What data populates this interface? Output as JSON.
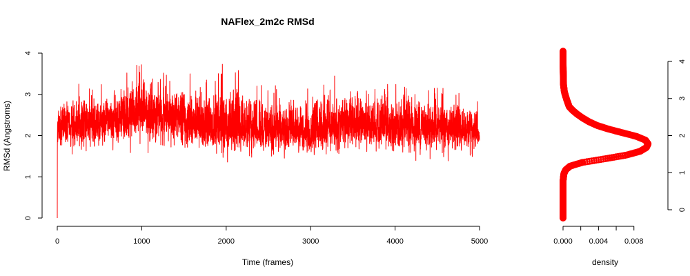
{
  "chart_data": [
    {
      "type": "line",
      "title": "NAFlex_2m2c RMSd",
      "xlabel": "Time (frames)",
      "ylabel": "RMSd (Angstroms)",
      "xlim": [
        0,
        5000
      ],
      "ylim": [
        0,
        4
      ],
      "xticks": [
        0,
        1000,
        2000,
        3000,
        4000,
        5000
      ],
      "yticks": [
        0,
        1,
        2,
        3,
        4
      ],
      "grid": false,
      "color": "#ff0000",
      "n_frames": 5000,
      "summary": {
        "mean": 2.15,
        "min": 0.0,
        "max": 4.15,
        "first": 0.0
      },
      "band_by_segment": {
        "x": [
          0,
          500,
          1000,
          1500,
          2000,
          2500,
          3000,
          3500,
          4000,
          4500,
          5000
        ],
        "mean": [
          2.2,
          2.25,
          2.5,
          2.3,
          2.1,
          2.15,
          2.05,
          2.3,
          2.15,
          2.2,
          2.1
        ],
        "low": [
          1.5,
          1.5,
          1.5,
          1.45,
          1.3,
          1.4,
          1.35,
          1.4,
          1.4,
          1.3,
          1.4
        ],
        "high": [
          3.3,
          3.4,
          4.1,
          3.6,
          4.1,
          3.3,
          3.4,
          3.5,
          3.6,
          3.4,
          3.0
        ]
      }
    },
    {
      "type": "line",
      "orientation": "vertical",
      "marker": "circle",
      "xlabel": "density",
      "xlim": [
        0,
        0.0095
      ],
      "ylim": [
        0,
        4.2
      ],
      "xticks": [
        0,
        0.002,
        0.004,
        0.006,
        0.008
      ],
      "xtick_labels": [
        "0.000",
        "",
        "0.004",
        "",
        "0.008"
      ],
      "yticks": [
        0,
        1,
        2,
        3,
        4
      ],
      "color": "#ff0000",
      "points": [
        {
          "y": 0.0,
          "density": 0.0
        },
        {
          "y": 1.0,
          "density": 0.0
        },
        {
          "y": 1.2,
          "density": 0.0001
        },
        {
          "y": 1.3,
          "density": 0.0003
        },
        {
          "y": 1.4,
          "density": 0.0008
        },
        {
          "y": 1.5,
          "density": 0.0022
        },
        {
          "y": 1.6,
          "density": 0.0048
        },
        {
          "y": 1.7,
          "density": 0.0072
        },
        {
          "y": 1.8,
          "density": 0.0087
        },
        {
          "y": 1.9,
          "density": 0.0094
        },
        {
          "y": 2.0,
          "density": 0.0096
        },
        {
          "y": 2.1,
          "density": 0.0093
        },
        {
          "y": 2.2,
          "density": 0.0083
        },
        {
          "y": 2.3,
          "density": 0.0067
        },
        {
          "y": 2.4,
          "density": 0.0051
        },
        {
          "y": 2.5,
          "density": 0.0038
        },
        {
          "y": 2.6,
          "density": 0.0029
        },
        {
          "y": 2.7,
          "density": 0.0022
        },
        {
          "y": 2.8,
          "density": 0.0016
        },
        {
          "y": 2.9,
          "density": 0.0011
        },
        {
          "y": 3.0,
          "density": 0.0007
        },
        {
          "y": 3.2,
          "density": 0.0004
        },
        {
          "y": 3.4,
          "density": 0.00015
        },
        {
          "y": 3.6,
          "density": 5e-05
        },
        {
          "y": 4.2,
          "density": 0.0
        }
      ]
    }
  ]
}
